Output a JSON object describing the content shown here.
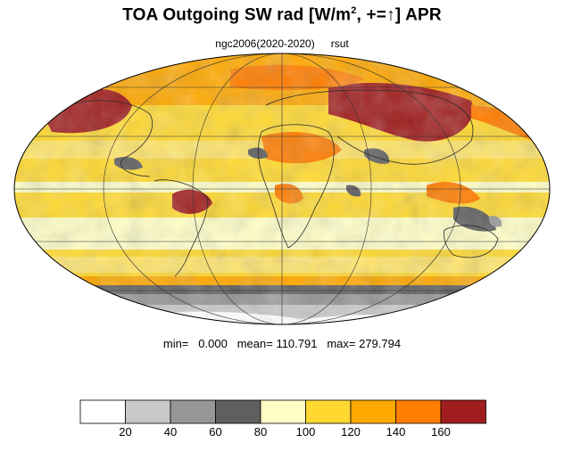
{
  "header": {
    "title_main": "TOA Outgoing SW rad [W/m",
    "title_sup": "2",
    "title_mid": ", +=",
    "title_arrow": "↑",
    "title_end": "] APR",
    "subtitle_left": "ngc2006(2020-2020)",
    "subtitle_right": "rsut"
  },
  "stats": {
    "min_label": "min=",
    "min_value": "0.000",
    "mean_label": "mean=",
    "mean_value": "110.791",
    "max_label": "max=",
    "max_value": "279.794"
  },
  "map": {
    "projection": "Mollweide",
    "field": "rsut",
    "month": "APR",
    "colors": {
      "ocean_base": "#ffd12e",
      "land_outline": "#2b2b2b",
      "grid": "#333333"
    }
  },
  "colorbar": {
    "levels": [
      "20",
      "40",
      "60",
      "80",
      "100",
      "120",
      "140",
      "160"
    ],
    "colors": [
      "#ffffff",
      "#c8c8c8",
      "#969696",
      "#5f5f5f",
      "#fffec6",
      "#ffd930",
      "#ffa800",
      "#ff7d00",
      "#a01e1e"
    ]
  }
}
